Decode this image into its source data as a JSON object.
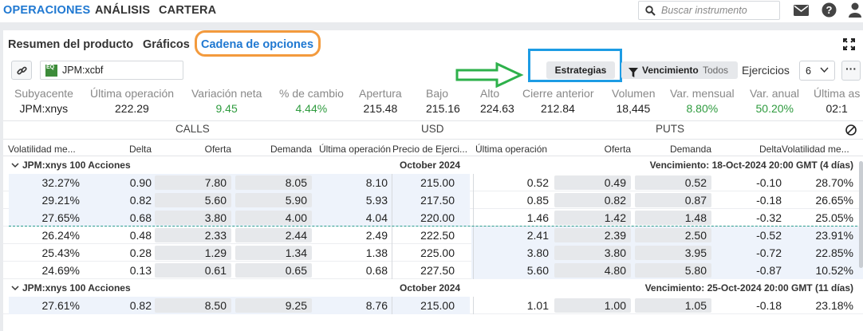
{
  "nav": {
    "items": [
      "OPERACIONES",
      "ANÁLISIS",
      "CARTERA"
    ],
    "active": 0
  },
  "search": {
    "placeholder": "Buscar instrumento"
  },
  "tabs": {
    "items": [
      "Resumen del producto",
      "Gráficos",
      "Cadena de opciones"
    ],
    "active": 2
  },
  "toolbar": {
    "instrument": "JPM:xcbf",
    "logo": "EQ",
    "estrategias": "Estrategias",
    "vencimiento": "Vencimiento",
    "vencimiento_value": "Todos",
    "ejercicios_label": "Ejercicios",
    "ejercicios_value": "6",
    "more": "···"
  },
  "stats": [
    {
      "label": "Subyacente",
      "value": "JPM:xnys"
    },
    {
      "label": "Última operación",
      "value": "222.29"
    },
    {
      "label": "Variación neta",
      "value": "9.45",
      "color": "green"
    },
    {
      "label": "% de cambio",
      "value": "4.44%",
      "color": "green"
    },
    {
      "label": "Apertura",
      "value": "215.48"
    },
    {
      "label": "Bajo",
      "value": "215.16"
    },
    {
      "label": "Alto",
      "value": "224.63"
    },
    {
      "label": "Cierre anterior",
      "value": "212.84"
    },
    {
      "label": "Volumen",
      "value": "18,445"
    },
    {
      "label": "Var. mensual",
      "value": "8.80%",
      "color": "green"
    },
    {
      "label": "Var. anual",
      "value": "50.20%",
      "color": "green"
    },
    {
      "label": "Última as",
      "value": "02:1"
    }
  ],
  "groups": {
    "calls": "CALLS",
    "usd": "USD",
    "puts": "PUTS"
  },
  "columns": [
    "Volatilidad me...",
    "Delta",
    "Oferta",
    "Demanda",
    "Última operación",
    "Precio de Ejerci...",
    "Última operación",
    "Oferta",
    "Demanda",
    "Delta",
    "Volatilidad me..."
  ],
  "expirations": [
    {
      "underlying": "JPM:xnys 100 Acciones",
      "month": "October 2024",
      "expiry": "Vencimiento: 18-Oct-2024 20:00 GMT (4 días)",
      "rows": [
        [
          "32.27%",
          "0.90",
          "7.80",
          "8.05",
          "8.10",
          "215.00",
          "0.52",
          "0.49",
          "0.52",
          "-0.10",
          "28.70%"
        ],
        [
          "29.21%",
          "0.82",
          "5.60",
          "5.90",
          "5.93",
          "217.50",
          "0.85",
          "0.82",
          "0.87",
          "-0.18",
          "26.65%"
        ],
        [
          "27.65%",
          "0.68",
          "3.80",
          "4.00",
          "4.04",
          "220.00",
          "1.46",
          "1.42",
          "1.48",
          "-0.32",
          "25.05%"
        ],
        [
          "26.24%",
          "0.48",
          "2.33",
          "2.44",
          "2.49",
          "222.50",
          "2.41",
          "2.39",
          "2.50",
          "-0.52",
          "23.91%"
        ],
        [
          "25.43%",
          "0.28",
          "1.29",
          "1.34",
          "1.38",
          "225.00",
          "3.80",
          "3.80",
          "3.95",
          "-0.72",
          "22.85%"
        ],
        [
          "24.69%",
          "0.13",
          "0.61",
          "0.65",
          "0.68",
          "227.50",
          "5.60",
          "4.80",
          "5.80",
          "-0.87",
          "10.52%"
        ]
      ]
    },
    {
      "underlying": "JPM:xnys 100 Acciones",
      "month": "October 2024",
      "expiry": "Vencimiento: 25-Oct-2024 20:00 GMT (11 días)",
      "rows": [
        [
          "27.61%",
          "0.82",
          "8.50",
          "9.25",
          "8.76",
          "215.00",
          "1.01",
          "1.00",
          "1.05",
          "-0.18",
          "23.18%"
        ]
      ]
    }
  ]
}
